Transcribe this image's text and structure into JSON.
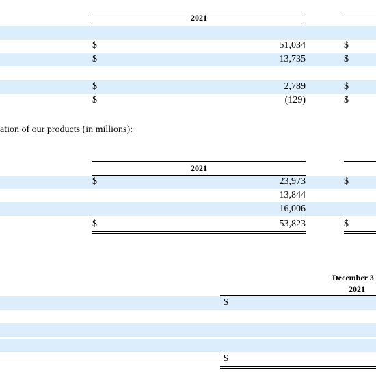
{
  "table1": {
    "year": "2021",
    "rows": [
      {
        "currency": "$",
        "amount": "51,034",
        "next_currency": "$"
      },
      {
        "currency": "$",
        "amount": "13,735",
        "next_currency": "$"
      },
      {
        "currency": "$",
        "amount": "2,789",
        "next_currency": "$"
      },
      {
        "currency": "$",
        "amount": "(129)",
        "next_currency": "$"
      }
    ]
  },
  "caption": "ation of our products (in millions):",
  "table2": {
    "year": "2021",
    "rows": [
      {
        "currency": "$",
        "amount": "23,973",
        "next_currency": "$"
      },
      {
        "amount": "13,844"
      },
      {
        "amount": "16,006"
      },
      {
        "currency": "$",
        "amount": "53,823",
        "next_currency": "$"
      }
    ]
  },
  "table3": {
    "date_header": "December 3",
    "year": "2021",
    "currency_top": "$",
    "currency_total": "$"
  }
}
